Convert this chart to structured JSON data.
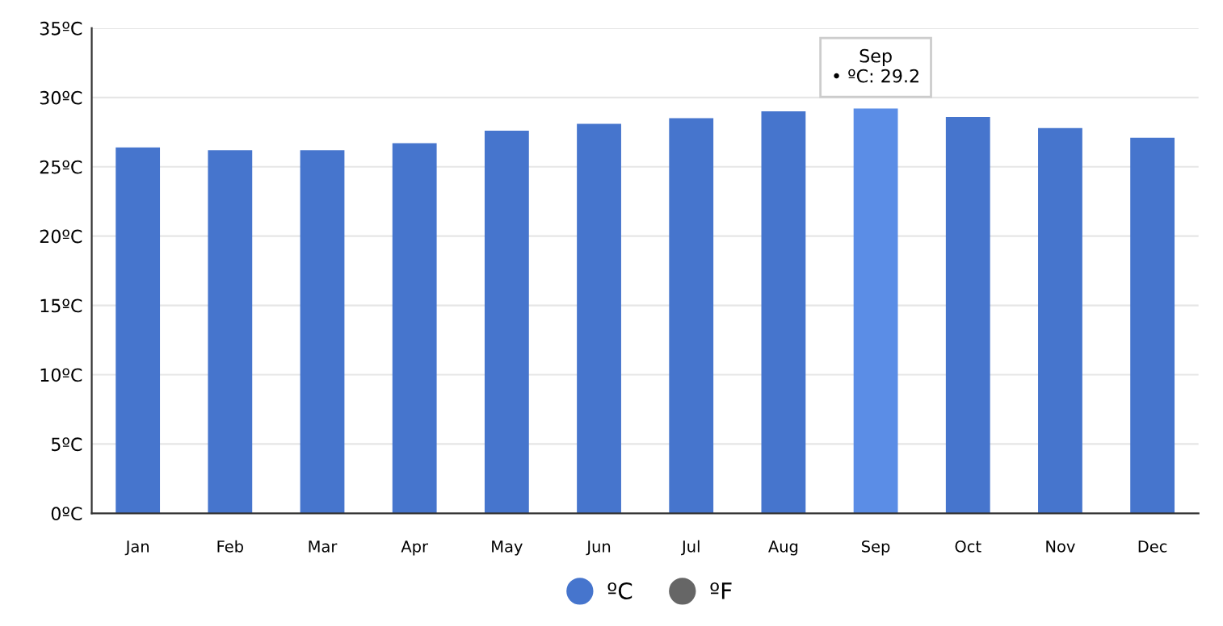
{
  "chart_data": {
    "type": "bar",
    "categories": [
      "Jan",
      "Feb",
      "Mar",
      "Apr",
      "May",
      "Jun",
      "Jul",
      "Aug",
      "Sep",
      "Oct",
      "Nov",
      "Dec"
    ],
    "series": [
      {
        "name": "ºC",
        "color": "#4675cd",
        "colors": [
          "#4675cd",
          "#4675cd",
          "#4675cd",
          "#4675cd",
          "#4675cd",
          "#4675cd",
          "#4675cd",
          "#4675cd",
          "#5b8de6",
          "#4675cd",
          "#4675cd",
          "#4675cd"
        ],
        "values": [
          26.4,
          26.2,
          26.2,
          26.7,
          27.6,
          28.1,
          28.5,
          29.0,
          29.2,
          28.6,
          27.8,
          27.1
        ]
      },
      {
        "name": "ºF",
        "color": "#666666",
        "values": [
          null,
          null,
          null,
          null,
          null,
          null,
          null,
          null,
          null,
          null,
          null,
          null
        ]
      }
    ],
    "ylim": [
      0,
      35
    ],
    "yticks": [
      {
        "value": 0,
        "label": "0ºC"
      },
      {
        "value": 5,
        "label": "5ºC"
      },
      {
        "value": 10,
        "label": "10ºC"
      },
      {
        "value": 15,
        "label": "15ºC"
      },
      {
        "value": 20,
        "label": "20ºC"
      },
      {
        "value": 25,
        "label": "25ºC"
      },
      {
        "value": 30,
        "label": "30ºC"
      },
      {
        "value": 35,
        "label": "35ºC"
      }
    ],
    "grid": "y",
    "legend": "bottom",
    "annotations": [
      {
        "text": "Sep\n• ºC: 29.2",
        "x": "Sep",
        "y": 29.2
      }
    ]
  }
}
